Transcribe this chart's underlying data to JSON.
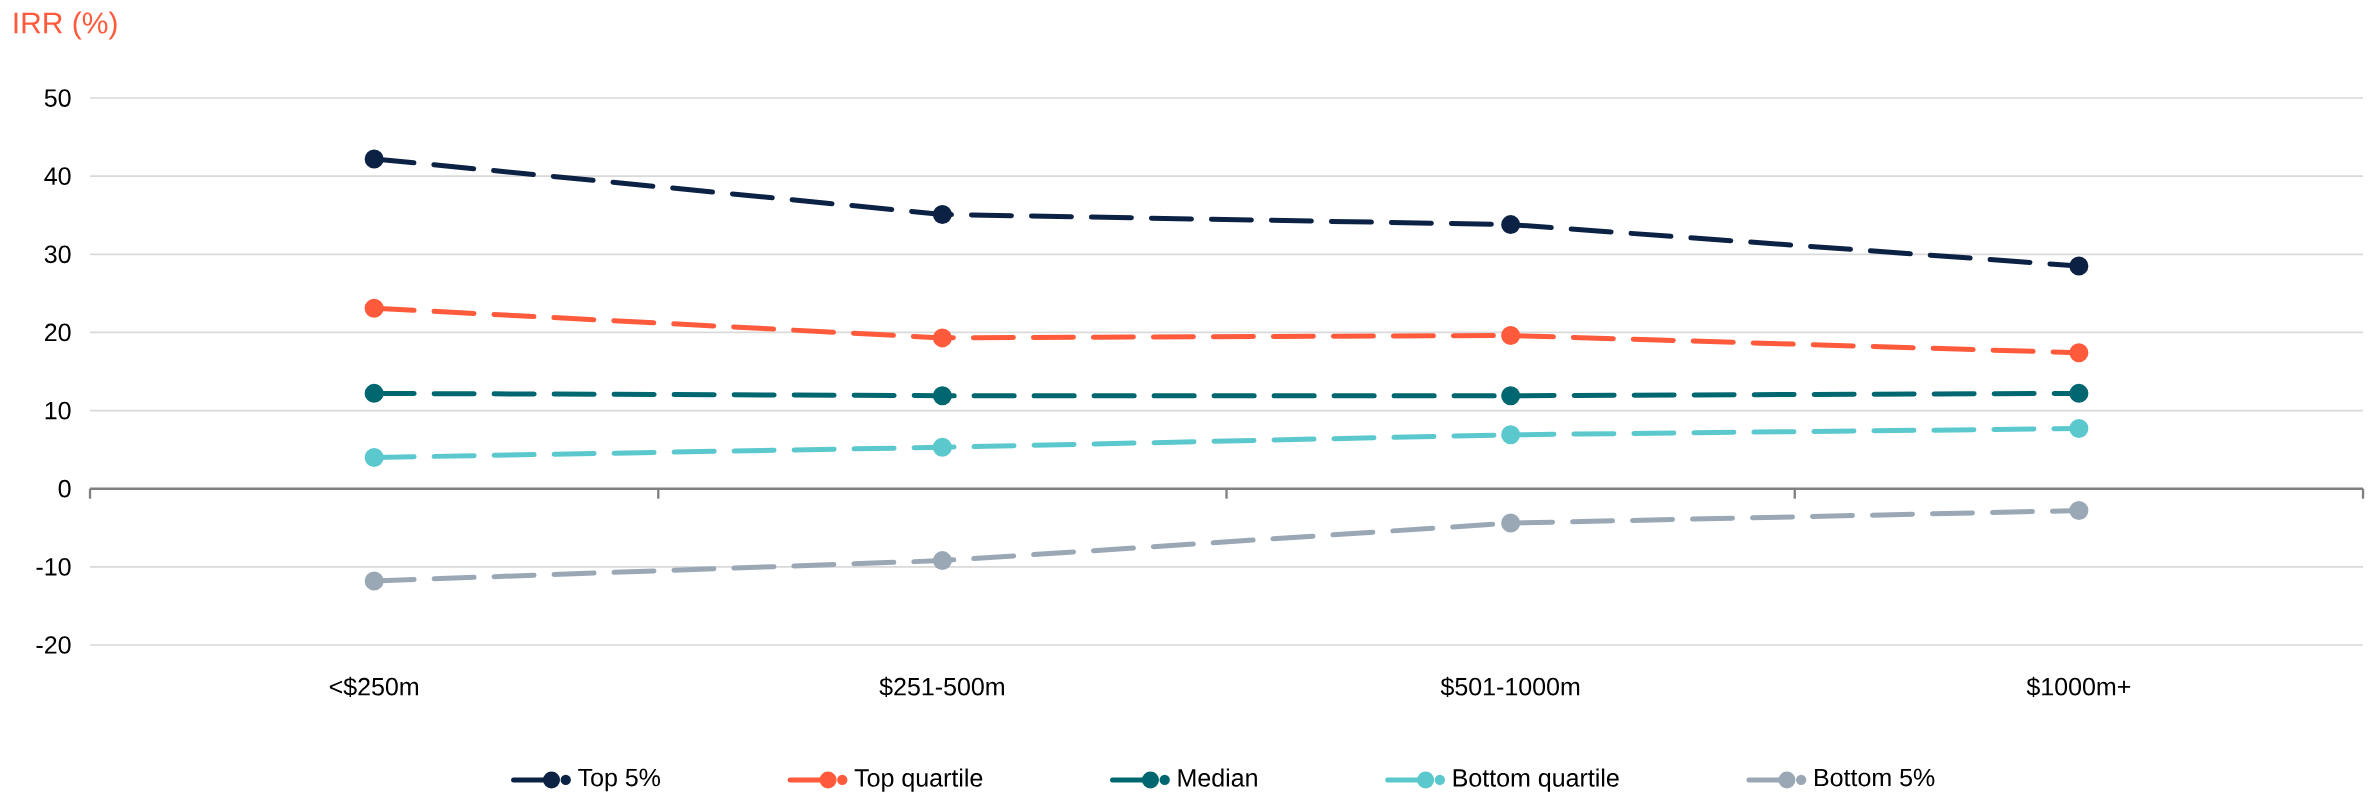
{
  "chart_data": {
    "type": "line",
    "ylabel": "IRR (%)",
    "categories": [
      "<$250m",
      "$251-500m",
      "$501-1000m",
      "$1000m+"
    ],
    "series": [
      {
        "name": "Top 5%",
        "color": "#0b2244",
        "values": [
          42.2,
          35.1,
          33.8,
          28.5
        ]
      },
      {
        "name": "Top quartile",
        "color": "#ff5a3c",
        "values": [
          23.1,
          19.3,
          19.6,
          17.4
        ]
      },
      {
        "name": "Median",
        "color": "#006770",
        "values": [
          12.2,
          11.9,
          11.9,
          12.2
        ]
      },
      {
        "name": "Bottom quartile",
        "color": "#5bc8cd",
        "values": [
          4.0,
          5.3,
          6.9,
          7.7
        ]
      },
      {
        "name": "Bottom 5%",
        "color": "#9aa8b5",
        "values": [
          -11.8,
          -9.2,
          -4.4,
          -2.8
        ]
      }
    ],
    "ylim": [
      -20,
      50
    ],
    "yticks": [
      -20,
      -10,
      0,
      10,
      20,
      30,
      40,
      50
    ],
    "grid": "y",
    "legend": "bottom",
    "marker": "circle",
    "line_style": "dashed"
  }
}
